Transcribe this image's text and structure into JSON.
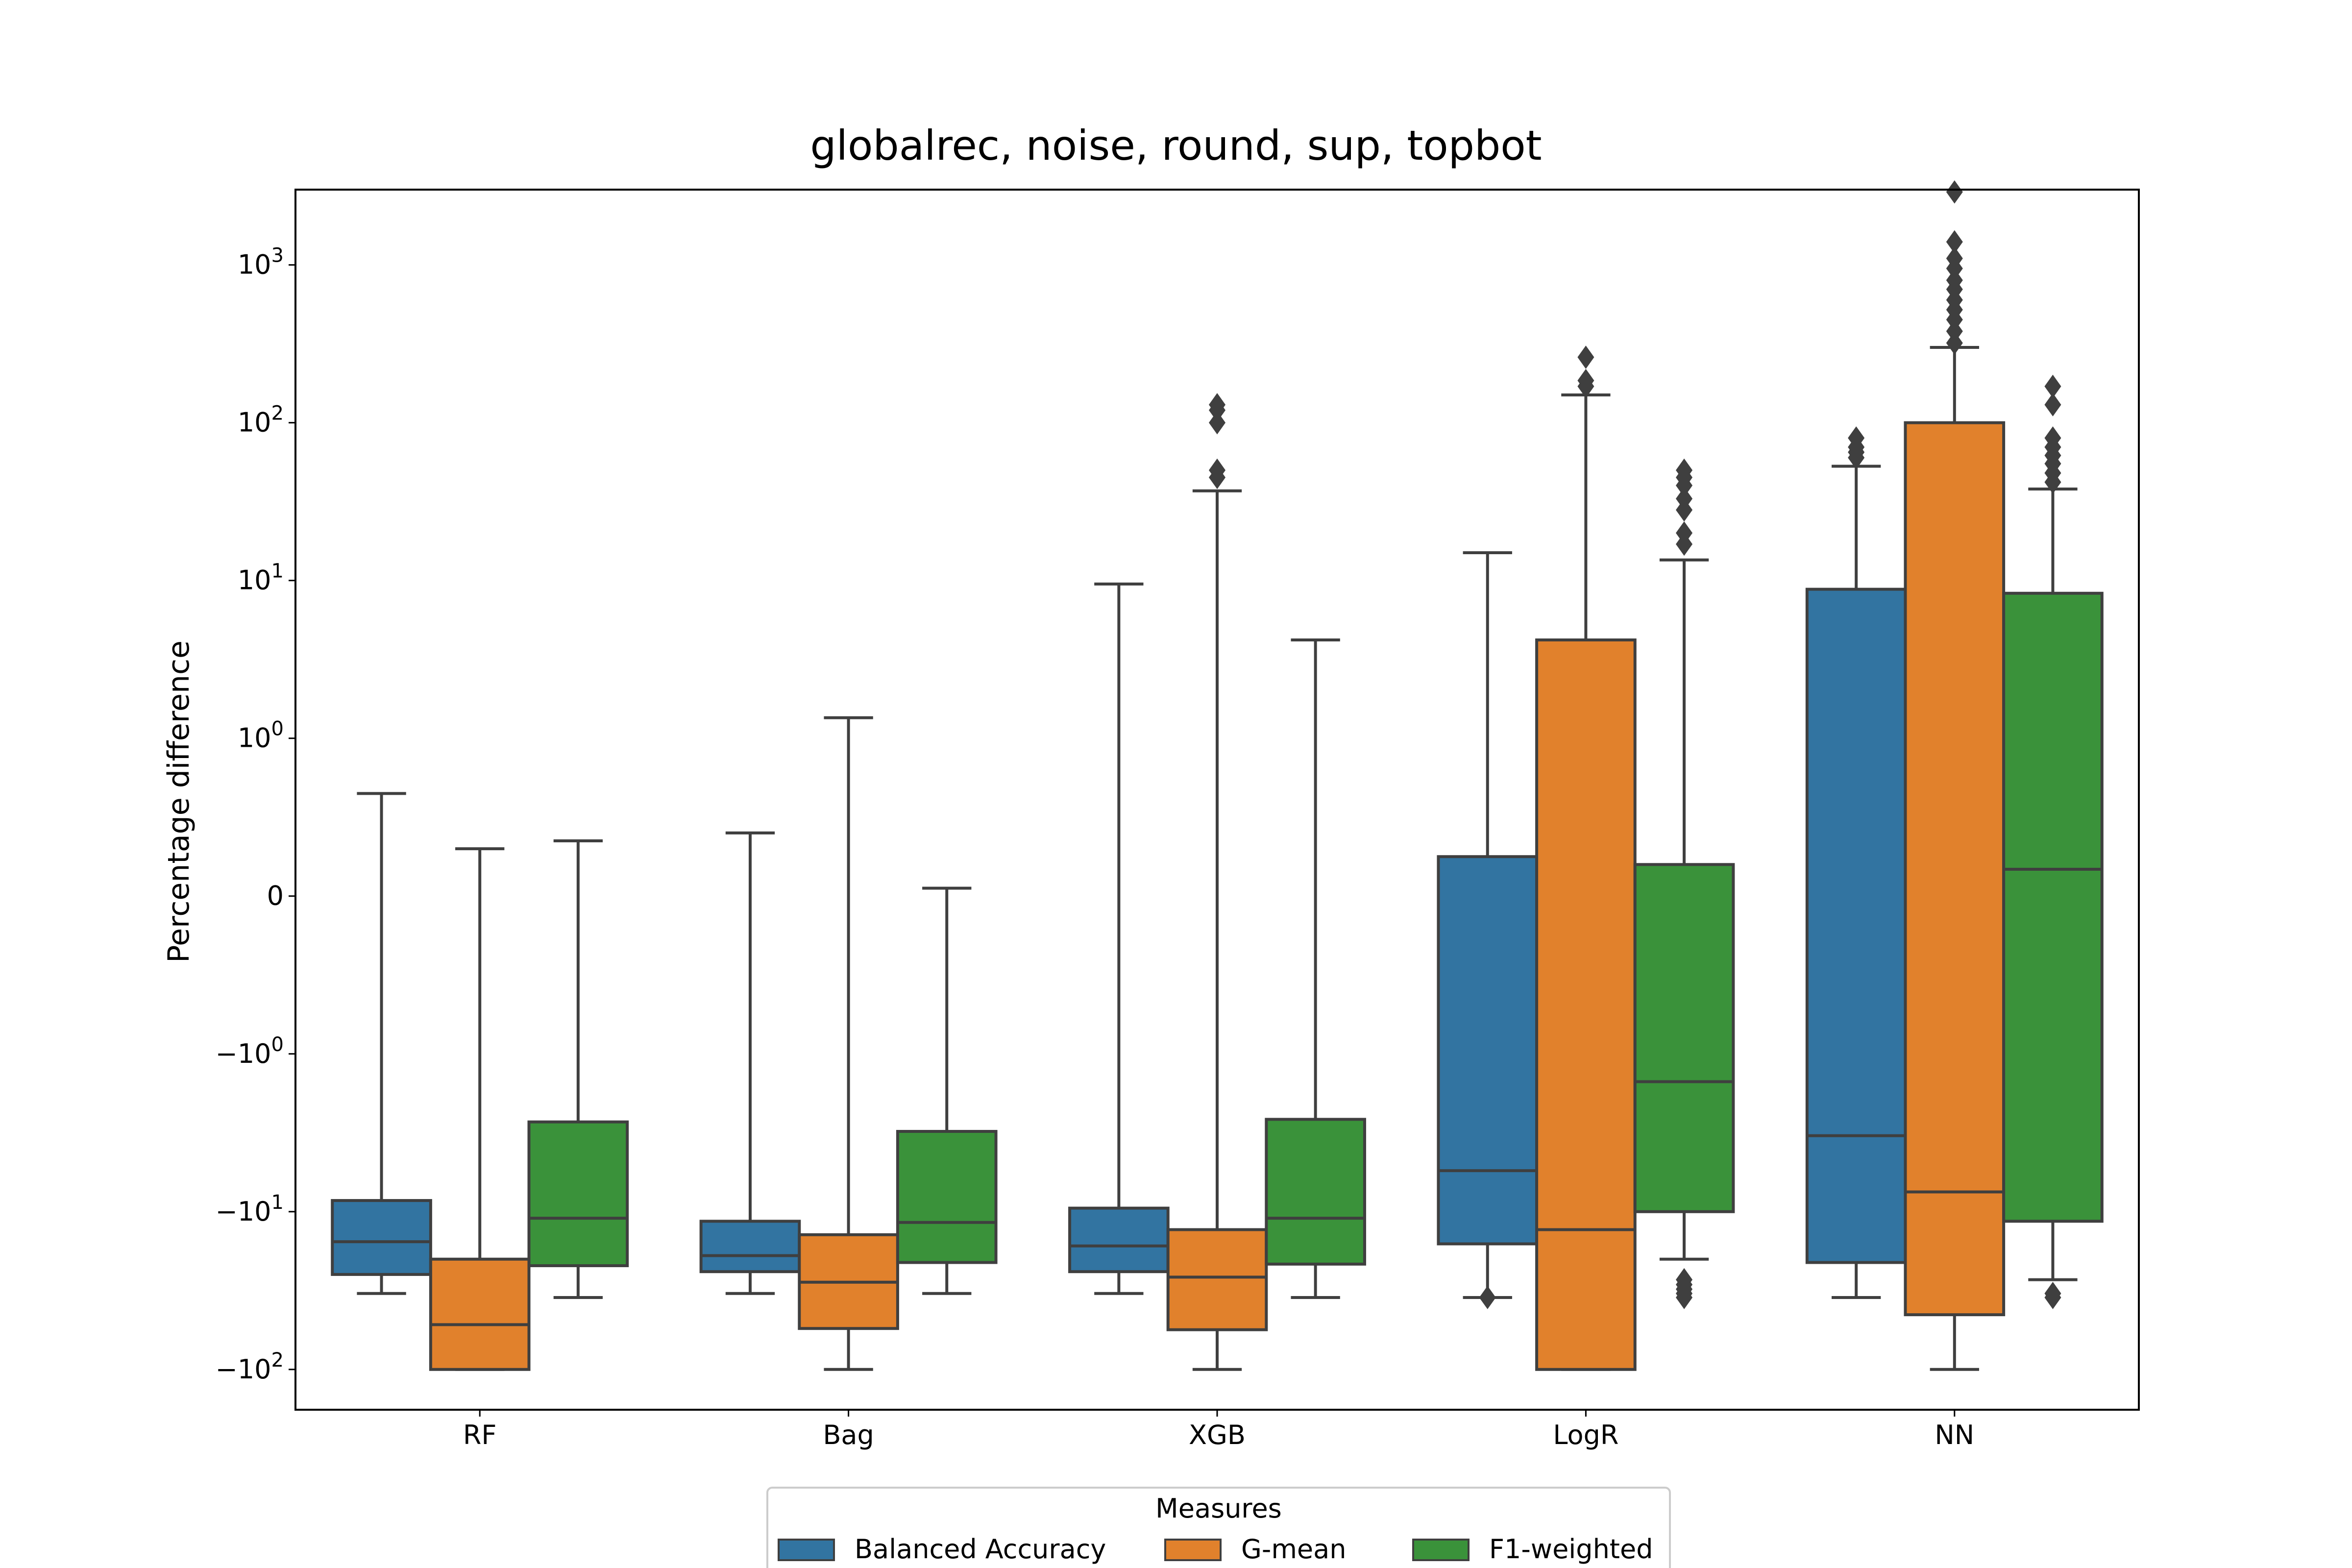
{
  "chart_data": {
    "type": "box",
    "title": "globalrec, noise, round, sup, topbot",
    "xlabel": "",
    "ylabel": "Percentage difference",
    "yscale": "symlog",
    "ylim": [
      -180,
      3000
    ],
    "yticks": [
      {
        "value": 1000,
        "base": "10",
        "exp": "3"
      },
      {
        "value": 100,
        "base": "10",
        "exp": "2"
      },
      {
        "value": 10,
        "base": "10",
        "exp": "1"
      },
      {
        "value": 1,
        "base": "10",
        "exp": "0"
      },
      {
        "value": 0,
        "label": "0"
      },
      {
        "value": -1,
        "base": "−10",
        "exp": "0"
      },
      {
        "value": -10,
        "base": "−10",
        "exp": "1"
      },
      {
        "value": -100,
        "base": "−10",
        "exp": "2"
      }
    ],
    "categories": [
      "RF",
      "Bag",
      "XGB",
      "LogR",
      "NN"
    ],
    "legend": {
      "title": "Measures",
      "position": "below"
    },
    "grid": false,
    "series": [
      {
        "name": "Balanced Accuracy",
        "color": "#3274a1",
        "boxes": [
          {
            "whislo": -33,
            "q1": -25,
            "med": -15.5,
            "q3": -8.5,
            "whishi": 0.65,
            "fliers": []
          },
          {
            "whislo": -33,
            "q1": -24,
            "med": -19,
            "q3": -11.5,
            "whishi": 0.4,
            "fliers": []
          },
          {
            "whislo": -33,
            "q1": -24,
            "med": -16.5,
            "q3": -9.5,
            "whishi": 9.5,
            "fliers": []
          },
          {
            "whislo": -35,
            "q1": -16,
            "med": -5.5,
            "q3": 0.25,
            "whishi": 15,
            "fliers": [
              -35
            ]
          },
          {
            "whislo": -35,
            "q1": -21,
            "med": -3.3,
            "q3": 8.8,
            "whishi": 53,
            "fliers": [
              60,
              65,
              70,
              80
            ]
          }
        ]
      },
      {
        "name": "G-mean",
        "color": "#e1812c",
        "boxes": [
          {
            "whislo": -100,
            "q1": -100,
            "med": -52,
            "q3": -20,
            "whishi": 0.3,
            "fliers": []
          },
          {
            "whislo": -100,
            "q1": -55,
            "med": -28,
            "q3": -14,
            "whishi": 1.35,
            "fliers": []
          },
          {
            "whislo": -100,
            "q1": -56,
            "med": -26,
            "q3": -13,
            "whishi": 37,
            "fliers": [
              45,
              50,
              100,
              120,
              130
            ]
          },
          {
            "whislo": -100,
            "q1": -100,
            "med": -13,
            "q3": 4.2,
            "whishi": 150,
            "fliers": [
              170,
              185,
              260
            ]
          },
          {
            "whislo": -100,
            "q1": -45,
            "med": -7.5,
            "q3": 100,
            "whishi": 300,
            "fliers": [
              320,
              380,
              450,
              520,
              600,
              700,
              800,
              950,
              1100,
              1400,
              2900
            ]
          }
        ]
      },
      {
        "name": "F1-weighted",
        "color": "#3a923a",
        "boxes": [
          {
            "whislo": -35,
            "q1": -22,
            "med": -11,
            "q3": -2.7,
            "whishi": 0.35,
            "fliers": []
          },
          {
            "whislo": -33,
            "q1": -21,
            "med": -11.7,
            "q3": -3.1,
            "whishi": 0.05,
            "fliers": []
          },
          {
            "whislo": -35,
            "q1": -21.5,
            "med": -11,
            "q3": -2.6,
            "whishi": 4.2,
            "fliers": []
          },
          {
            "whislo": -20,
            "q1": -10,
            "med": -1.5,
            "q3": 0.2,
            "whishi": 13.5,
            "fliers": [
              -27,
              -29,
              -31,
              -33,
              -35,
              17,
              20,
              28,
              33,
              40,
              45,
              50
            ]
          },
          {
            "whislo": -27,
            "q1": -11.5,
            "med": 0.17,
            "q3": 8.3,
            "whishi": 38,
            "fliers": [
              -33,
              -35,
              42,
              48,
              55,
              62,
              70,
              80,
              130,
              170
            ]
          }
        ]
      }
    ]
  }
}
